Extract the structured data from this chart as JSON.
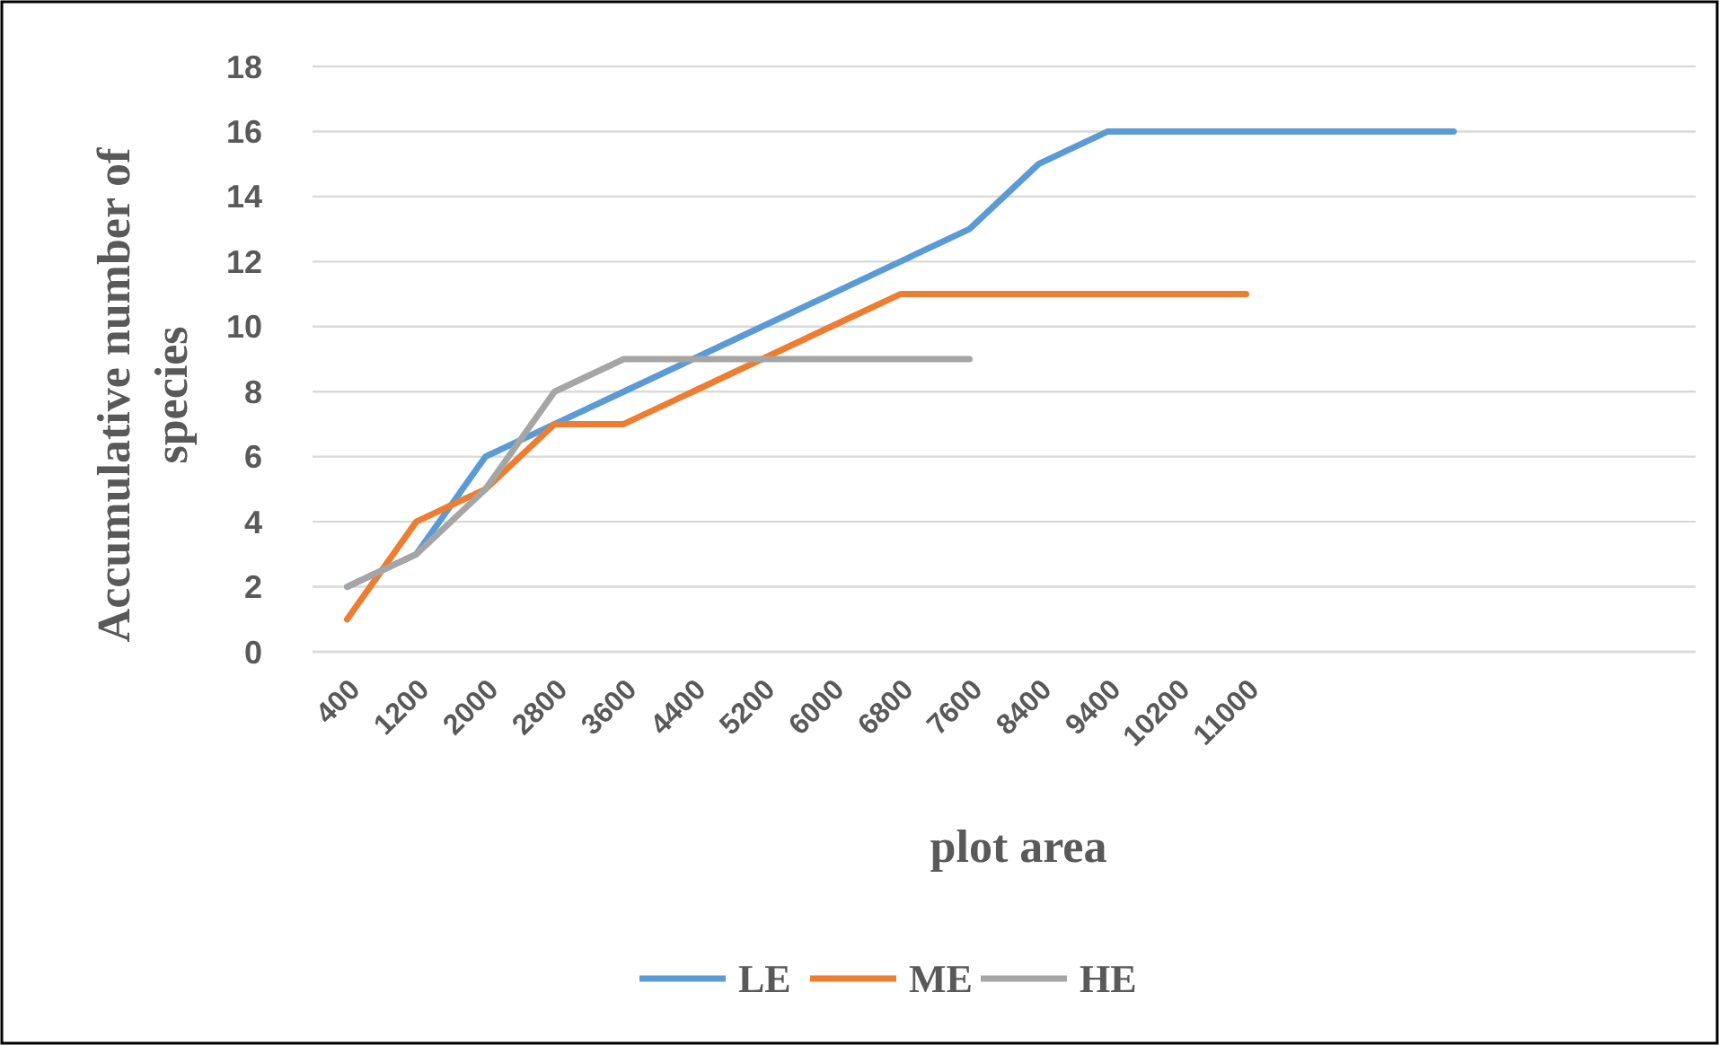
{
  "chart_data": {
    "type": "line",
    "xlabel": "plot area",
    "ylabel": "Accumulative number of species",
    "categories": [
      "400",
      "1200",
      "2000",
      "2800",
      "3600",
      "4400",
      "5200",
      "6000",
      "6800",
      "7600",
      "8400",
      "9400",
      "10200",
      "11000",
      null,
      null,
      null,
      null,
      null,
      null
    ],
    "series": [
      {
        "name": "LE",
        "color": "#5b9bd5",
        "values": [
          2,
          3,
          6,
          7,
          8,
          9,
          10,
          11,
          12,
          13,
          15,
          16,
          16,
          16,
          16,
          16,
          16,
          null,
          null,
          null
        ]
      },
      {
        "name": "ME",
        "color": "#ed7d31",
        "values": [
          1,
          4,
          5,
          7,
          7,
          8,
          9,
          10,
          11,
          11,
          11,
          11,
          11,
          11,
          null,
          null,
          null,
          null,
          null,
          null
        ]
      },
      {
        "name": "HE",
        "color": "#a5a5a5",
        "values": [
          2,
          3,
          5,
          8,
          9,
          9,
          9,
          9,
          9,
          9,
          null,
          null,
          null,
          null,
          null,
          null,
          null,
          null,
          null,
          null
        ]
      }
    ],
    "ylim": [
      0,
      18
    ],
    "yticks": [
      0,
      2,
      4,
      6,
      8,
      10,
      12,
      14,
      16,
      18
    ],
    "grid": "y",
    "legend": "bottom",
    "marker": "none",
    "line_style": "solid"
  }
}
